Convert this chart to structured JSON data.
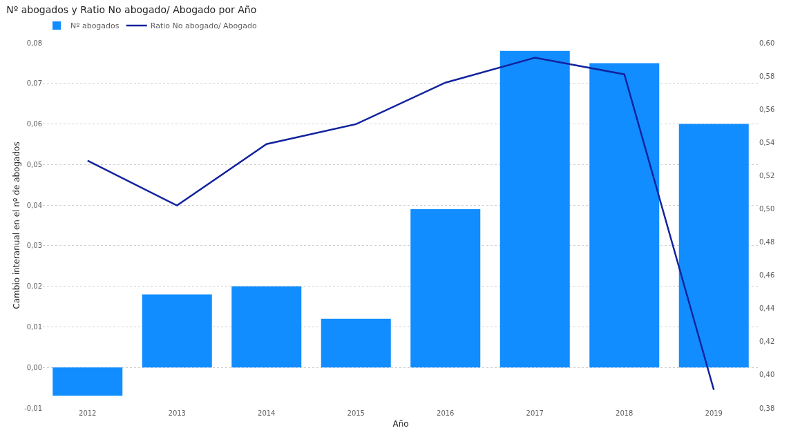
{
  "chart_data": {
    "type": "bar",
    "title": "Nº abogados y Ratio No abogado/ Abogado por Año",
    "xlabel": "Año",
    "ylabel": "Cambio interanual en el nº de abogados",
    "categories": [
      "2012",
      "2013",
      "2014",
      "2015",
      "2016",
      "2017",
      "2018",
      "2019"
    ],
    "series": [
      {
        "name": "Nº abogados",
        "color": "#118dff",
        "values": [
          -0.007,
          0.018,
          0.02,
          0.012,
          0.039,
          0.078,
          0.075,
          0.06
        ]
      },
      {
        "name": "Ratio No abogado/ Abogado",
        "type": "line",
        "axis": "y2",
        "color": "#12239e",
        "marker": "none",
        "values": [
          0.529,
          0.502,
          0.539,
          0.551,
          0.576,
          0.591,
          0.581,
          0.391
        ]
      }
    ],
    "ylim": [
      -0.01,
      0.08
    ],
    "yticks": [
      {
        "value": -0.01,
        "label": "-0,01"
      },
      {
        "value": 0,
        "label": "0,00"
      },
      {
        "value": 0.01,
        "label": "0,01"
      },
      {
        "value": 0.02,
        "label": "0,02"
      },
      {
        "value": 0.03,
        "label": "0,03"
      },
      {
        "value": 0.04,
        "label": "0,04"
      },
      {
        "value": 0.05,
        "label": "0,05"
      },
      {
        "value": 0.06,
        "label": "0,06"
      },
      {
        "value": 0.07,
        "label": "0,07"
      },
      {
        "value": 0.08,
        "label": "0,08"
      }
    ],
    "y2lim": [
      0.38,
      0.6
    ],
    "y2ticks": [
      {
        "value": 0.38,
        "label": "0,38"
      },
      {
        "value": 0.4,
        "label": "0,40"
      },
      {
        "value": 0.42,
        "label": "0,42"
      },
      {
        "value": 0.44,
        "label": "0,44"
      },
      {
        "value": 0.46,
        "label": "0,46"
      },
      {
        "value": 0.48,
        "label": "0,48"
      },
      {
        "value": 0.5,
        "label": "0,50"
      },
      {
        "value": 0.52,
        "label": "0,52"
      },
      {
        "value": 0.54,
        "label": "0,54"
      },
      {
        "value": 0.56,
        "label": "0,56"
      },
      {
        "value": 0.58,
        "label": "0,58"
      },
      {
        "value": 0.6,
        "label": "0,60"
      }
    ],
    "grid": "y",
    "legend": "top left"
  }
}
